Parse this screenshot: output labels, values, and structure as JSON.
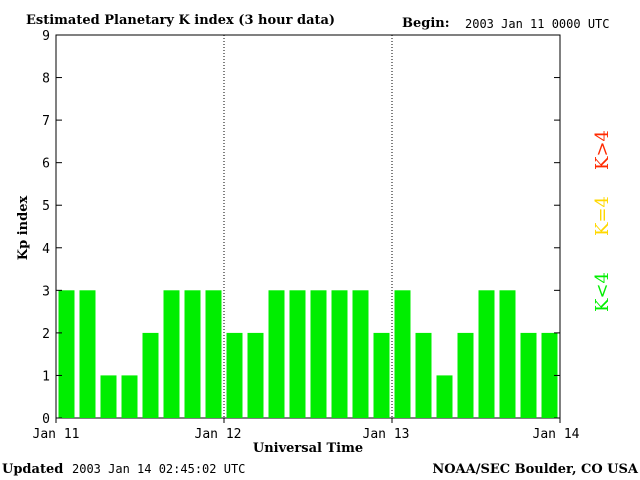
{
  "header": {
    "title": "Estimated Planetary K index (3 hour data)",
    "begin_label": "Begin:",
    "begin_value": "2003 Jan 11 0000 UTC"
  },
  "footer": {
    "updated_label": "Updated",
    "updated_value": "2003 Jan 14 02:45:02 UTC",
    "source": "NOAA/SEC Boulder, CO USA"
  },
  "legend": [
    {
      "label": "K>4",
      "color": "#ff2a00"
    },
    {
      "label": "K=4",
      "color": "#ffd800"
    },
    {
      "label": "K<4",
      "color": "#00ee00"
    }
  ],
  "chart_data": {
    "type": "bar",
    "title": "Estimated Planetary K index (3 hour data)",
    "xlabel": "Universal Time",
    "ylabel": "Kp index",
    "ylim": [
      0,
      9
    ],
    "yticks": [
      "0",
      "1",
      "2",
      "3",
      "4",
      "5",
      "6",
      "7",
      "8",
      "9"
    ],
    "xticks": [
      "Jan 11",
      "Jan 12",
      "Jan 13",
      "Jan 14"
    ],
    "grid": false,
    "day_separators": "dotted vertical lines at day boundaries",
    "interval_hours": 3,
    "bar_color": "#00ee00",
    "values": [
      3,
      3,
      1,
      1,
      2,
      3,
      3,
      3,
      2,
      2,
      3,
      3,
      3,
      3,
      3,
      2,
      3,
      2,
      1,
      2,
      3,
      3,
      2,
      2
    ]
  }
}
